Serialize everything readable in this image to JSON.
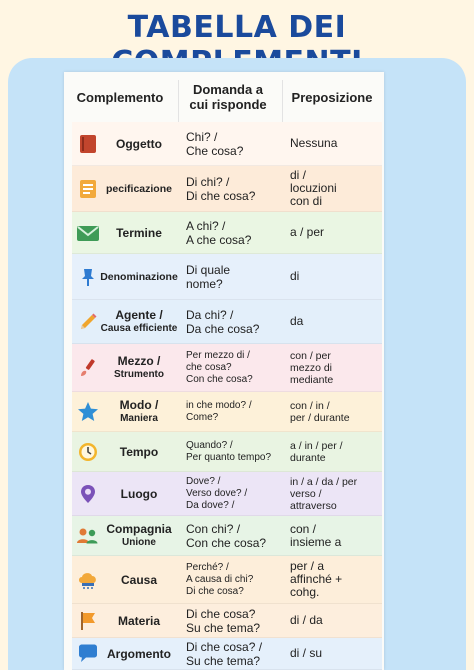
{
  "title": "TABELLA DEI COMPLEMENTI",
  "headers": {
    "col1": "Complemento",
    "col2_line1": "Domanda a",
    "col2_line2": "cui risponde",
    "col3": "Preposizione"
  },
  "rows": [
    {
      "icon": "book-icon",
      "color": "#fff6ef",
      "name": "Oggetto",
      "q": [
        "Chi? /",
        "Che cosa?"
      ],
      "p": [
        "Nessuna"
      ]
    },
    {
      "icon": "document-icon",
      "color": "#fdebd9",
      "name": "pecificazione",
      "q": [
        "Di chi? /",
        "Di che cosa?"
      ],
      "p": [
        "di /",
        "locuzioni",
        "con di"
      ]
    },
    {
      "icon": "envelope-icon",
      "color": "#eaf6e3",
      "name": "Termine",
      "q": [
        "A chi? /",
        "A che cosa?"
      ],
      "p": [
        "a / per"
      ]
    },
    {
      "icon": "pin-icon",
      "color": "#e6f0fb",
      "name": "Denominazione",
      "q": [
        "Di quale",
        "nome?"
      ],
      "p": [
        "di"
      ]
    },
    {
      "icon": "pencil-icon",
      "color": "#e3effa",
      "name": "Agente /",
      "sub": "Causa efficiente",
      "q": [
        "Da chi? /",
        "Da che cosa?"
      ],
      "p": [
        "da"
      ]
    },
    {
      "icon": "paintbrush-icon",
      "color": "#fbe8ec",
      "name": "Mezzo /",
      "sub": "Strumento",
      "q": [
        "Per mezzo di /",
        "che cosa?",
        "Con che cosa?"
      ],
      "p": [
        "con / per",
        "mezzo di",
        "mediante"
      ],
      "small": true
    },
    {
      "icon": "star-icon",
      "color": "#fdf1d9",
      "name": "Modo /",
      "sub": "Maniera",
      "q": [
        "in che modo? /",
        "Come?"
      ],
      "p": [
        "con / in /",
        "per / durante"
      ],
      "small": true
    },
    {
      "icon": "clock-icon",
      "color": "#e9f4e2",
      "name": "Tempo",
      "q": [
        "Quando? /",
        "Per quanto tempo?"
      ],
      "p": [
        "a / in / per /",
        "durante"
      ],
      "small": true
    },
    {
      "icon": "location-icon",
      "color": "#ece5f6",
      "name": "Luogo",
      "q": [
        "Dove? /",
        "Verso dove? /",
        "Da dove? /"
      ],
      "p": [
        "in / a / da / per",
        "verso /",
        "attraverso"
      ],
      "small": true
    },
    {
      "icon": "people-icon",
      "color": "#e7f4e6",
      "name": "Compagnia",
      "sub": "Unione",
      "q": [
        "Con chi? /",
        "Con che cosa?"
      ],
      "p": [
        "con /",
        "insieme a"
      ]
    },
    {
      "icon": "cloud-icon",
      "color": "#fdeeda",
      "name": "Causa",
      "q": [
        "Perché? /",
        "A causa di chi?",
        "Di che cosa?"
      ],
      "p": [
        "per / a",
        "affinché +",
        "cohg."
      ]
    },
    {
      "icon": "flag-icon",
      "color": "#fdeedd",
      "name": "Materia",
      "q": [
        "Di che cosa?",
        "Su che tema?"
      ],
      "p": [
        "di / da"
      ]
    },
    {
      "icon": "speech-bubble-icon",
      "color": "#e5f0fb",
      "name": "Argomento",
      "q": [
        "Di che cosa? /",
        "Su che tema?"
      ],
      "p": [
        "di / su"
      ]
    }
  ]
}
